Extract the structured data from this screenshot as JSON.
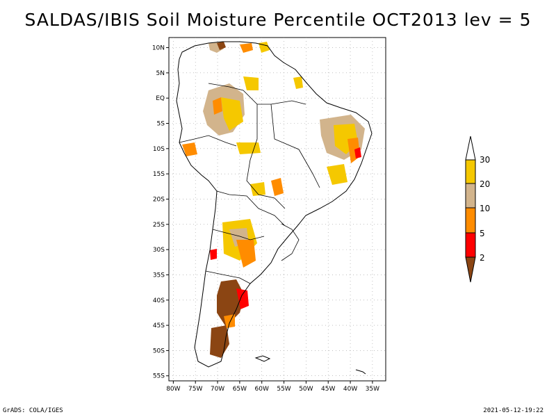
{
  "title": "SALDAS/IBIS Soil Moisture Percentile OCT2013 lev = 5",
  "footer": {
    "left": "GrADS: COLA/IGES",
    "right": "2021-05-12-19:22"
  },
  "map": {
    "lat_labels": [
      "10N",
      "5N",
      "EQ",
      "5S",
      "10S",
      "15S",
      "20S",
      "25S",
      "30S",
      "35S",
      "40S",
      "45S",
      "50S",
      "55S"
    ],
    "lat_values": [
      10,
      5,
      0,
      -5,
      -10,
      -15,
      -20,
      -25,
      -30,
      -35,
      -40,
      -45,
      -50,
      -55
    ],
    "lon_labels": [
      "80W",
      "75W",
      "70W",
      "65W",
      "60W",
      "55W",
      "50W",
      "45W",
      "40W",
      "35W"
    ],
    "lon_values": [
      -80,
      -75,
      -70,
      -65,
      -60,
      -55,
      -50,
      -45,
      -40,
      -35
    ],
    "lon_range": [
      -81,
      -32
    ],
    "lat_range": [
      -56,
      12
    ]
  },
  "colorbar": {
    "labels": [
      "30",
      "20",
      "10",
      "5",
      "2"
    ],
    "colors": {
      "above_30": "#ffffff",
      "20_30": "#f5c800",
      "10_20": "#d2b48c",
      "5_10": "#ff8c00",
      "2_5": "#ff0000",
      "below_2": "#8b4513"
    }
  },
  "colors": {
    "yellow": "#f5c800",
    "tan": "#d2b48c",
    "orange": "#ff8c00",
    "red": "#ff0000",
    "brown": "#8b4513"
  }
}
